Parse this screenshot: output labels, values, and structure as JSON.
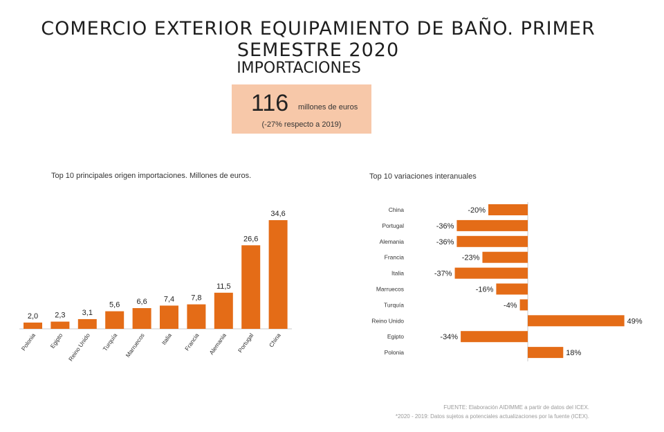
{
  "title": "COMERCIO EXTERIOR EQUIPAMIENTO DE BAÑO. PRIMER SEMESTRE 2020",
  "section": "IMPORTACIONES",
  "kpi": {
    "value": "116",
    "unit": "millones de euros",
    "change": "(-27% respecto a 2019)"
  },
  "colors": {
    "bar": "#e46c17",
    "kpi_bg": "#f7c8a9",
    "axis": "#c8c8c8"
  },
  "footer": {
    "source": "FUENTE: Elaboración AIDIMME a partir de datos del ICEX.",
    "note": "*2020 - 2019: Datos sujetos a potenciales actualizaciones por la fuente (ICEX)."
  },
  "chart_data": [
    {
      "type": "bar",
      "title": "Top 10 principales origen importaciones. Millones de euros.",
      "categories": [
        "Polonia",
        "Egipto",
        "Reino Unido",
        "Turquía",
        "Marruecos",
        "Italia",
        "Francia",
        "Alemania",
        "Portugal",
        "China"
      ],
      "values": [
        2.0,
        2.3,
        3.1,
        5.6,
        6.6,
        7.4,
        7.8,
        11.5,
        26.6,
        34.6
      ],
      "value_labels": [
        "2,0",
        "2,3",
        "3,1",
        "5,6",
        "6,6",
        "7,4",
        "7,8",
        "11,5",
        "26,6",
        "34,6"
      ],
      "ylim": [
        0,
        34.6
      ]
    },
    {
      "type": "bar",
      "orientation": "horizontal",
      "title": "Top 10 variaciones interanuales",
      "categories": [
        "China",
        "Portugal",
        "Alemania",
        "Francia",
        "Italia",
        "Marruecos",
        "Turquía",
        "Reino Unido",
        "Egipto",
        "Polonia"
      ],
      "values": [
        -20,
        -36,
        -36,
        -23,
        -37,
        -16,
        -4,
        49,
        -34,
        18
      ],
      "value_labels": [
        "-20%",
        "-36%",
        "-36%",
        "-23%",
        "-37%",
        "-16%",
        "-4%",
        "49%",
        "-34%",
        "18%"
      ],
      "xlim": [
        -37,
        49
      ]
    }
  ]
}
